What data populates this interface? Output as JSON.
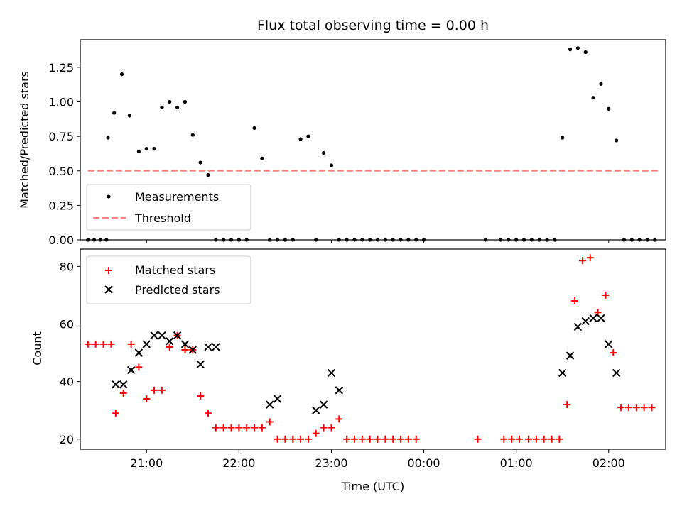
{
  "chart_data": [
    {
      "type": "scatter",
      "title": "Flux total observing time = 0.00 h",
      "xlabel": "",
      "ylabel": "Matched/Predicted stars",
      "ylim": [
        0,
        1.45
      ],
      "xlim": [
        "20:17",
        "02:37"
      ],
      "x_ticks": [
        "21:00",
        "22:00",
        "23:00",
        "00:00",
        "01:00",
        "02:00"
      ],
      "y_ticks": [
        "0.00",
        "0.25",
        "0.50",
        "0.75",
        "1.00",
        "1.25"
      ],
      "legend": "lower-left",
      "colors": {
        "measurements": "#000000",
        "threshold": "#ff7f7f"
      },
      "series": [
        {
          "name": "Measurements",
          "marker": "dot",
          "x": [
            "20:35",
            "20:39",
            "20:44",
            "20:49",
            "20:55",
            "21:00",
            "21:05",
            "21:10",
            "21:15",
            "21:20",
            "21:25",
            "21:30",
            "21:35",
            "21:40",
            "21:45",
            "21:50",
            "21:55",
            "22:00",
            "22:05",
            "22:10",
            "22:15",
            "22:20",
            "22:25",
            "22:30",
            "22:35",
            "22:40",
            "22:45",
            "22:50",
            "22:55",
            "23:00",
            "23:05",
            "23:10",
            "23:15",
            "23:20",
            "23:25",
            "23:30",
            "23:35",
            "23:40",
            "23:45",
            "23:50",
            "23:55",
            "00:00",
            "01:00",
            "01:15",
            "01:20",
            "01:25",
            "01:30",
            "01:35",
            "01:40",
            "01:45",
            "01:50",
            "01:55",
            "02:00",
            "02:05",
            "02:10",
            "02:15",
            "02:20",
            "02:25",
            "02:30",
            "20:22",
            "20:26",
            "20:30",
            "20:34",
            "00:40",
            "00:50",
            "00:55",
            "01:05",
            "01:10",
            "01:20"
          ],
          "y": [
            0.74,
            0.92,
            1.2,
            0.9,
            0.64,
            0.66,
            0.66,
            0.96,
            1.0,
            0.96,
            1.0,
            0.76,
            0.56,
            0.47,
            0.0,
            0.0,
            0.0,
            0.0,
            0.0,
            0.81,
            0.59,
            0.0,
            0.0,
            0.0,
            0.0,
            0.73,
            0.75,
            0.0,
            0.63,
            0.54,
            0.0,
            0.0,
            0.0,
            0.0,
            0.0,
            0.0,
            0.0,
            0.0,
            0.0,
            0.0,
            0.0,
            0.0,
            0.0,
            0.0,
            0.0,
            0.0,
            0.74,
            1.38,
            1.39,
            1.36,
            1.03,
            1.13,
            0.95,
            0.72,
            0.0,
            0.0,
            0.0,
            0.0,
            0.0,
            0.0,
            0.0,
            0.0,
            0.0,
            0.0,
            0.0,
            0.0,
            0.0,
            0.0,
            0.0
          ]
        },
        {
          "name": "Threshold",
          "marker": "dashed-line",
          "x": [
            "20:22",
            "02:32"
          ],
          "y": [
            0.5,
            0.5
          ]
        }
      ]
    },
    {
      "type": "scatter",
      "title": "",
      "xlabel": "Time (UTC)",
      "ylabel": "Count",
      "ylim": [
        16.5,
        86
      ],
      "xlim": [
        "20:17",
        "02:37"
      ],
      "x_ticks": [
        "21:00",
        "22:00",
        "23:00",
        "00:00",
        "01:00",
        "02:00"
      ],
      "y_ticks": [
        "20",
        "40",
        "60",
        "80"
      ],
      "legend": "top-left",
      "colors": {
        "matched": "#ff0000",
        "predicted": "#000000"
      },
      "series": [
        {
          "name": "Matched stars",
          "marker": "plus",
          "x": [
            "20:22",
            "20:27",
            "20:32",
            "20:37",
            "20:40",
            "20:45",
            "20:50",
            "20:55",
            "21:00",
            "21:05",
            "21:10",
            "21:15",
            "21:20",
            "21:25",
            "21:30",
            "21:35",
            "21:40",
            "21:45",
            "21:50",
            "21:55",
            "22:00",
            "22:05",
            "22:10",
            "22:15",
            "22:20",
            "22:25",
            "22:30",
            "22:35",
            "22:40",
            "22:45",
            "22:50",
            "22:55",
            "23:00",
            "23:05",
            "23:10",
            "23:15",
            "23:20",
            "23:25",
            "23:30",
            "23:35",
            "23:40",
            "23:45",
            "23:50",
            "23:55",
            "00:35",
            "00:52",
            "00:57",
            "01:02",
            "01:08",
            "01:13",
            "01:18",
            "01:23",
            "01:28",
            "01:33",
            "01:38",
            "01:43",
            "01:48",
            "01:53",
            "01:58",
            "02:03",
            "02:08",
            "02:13",
            "02:18",
            "02:23",
            "02:28"
          ],
          "y": [
            53,
            53,
            53,
            53,
            29,
            36,
            53,
            45,
            34,
            37,
            37,
            52,
            56,
            51,
            51,
            35,
            29,
            24,
            24,
            24,
            24,
            24,
            24,
            24,
            26,
            20,
            20,
            20,
            20,
            20,
            22,
            24,
            24,
            27,
            20,
            20,
            20,
            20,
            20,
            20,
            20,
            20,
            20,
            20,
            20,
            20,
            20,
            20,
            20,
            20,
            20,
            20,
            20,
            32,
            68,
            82,
            83,
            64,
            70,
            50,
            31,
            31,
            31,
            31,
            31
          ],
          "display": "partial"
        },
        {
          "name": "Predicted stars",
          "marker": "x",
          "x": [
            "20:40",
            "20:45",
            "20:50",
            "20:55",
            "21:00",
            "21:05",
            "21:10",
            "21:15",
            "21:20",
            "21:25",
            "21:30",
            "21:35",
            "21:40",
            "21:45",
            "22:20",
            "22:25",
            "22:50",
            "22:55",
            "23:00",
            "23:05",
            "01:30",
            "01:35",
            "01:40",
            "01:45",
            "01:50",
            "01:55",
            "02:00",
            "02:05"
          ],
          "y": [
            39,
            39,
            44,
            50,
            53,
            56,
            56,
            54,
            56,
            53,
            51,
            46,
            52,
            52,
            32,
            34,
            30,
            32,
            43,
            37,
            43,
            49,
            59,
            61,
            62,
            62,
            53,
            43
          ]
        }
      ]
    }
  ]
}
